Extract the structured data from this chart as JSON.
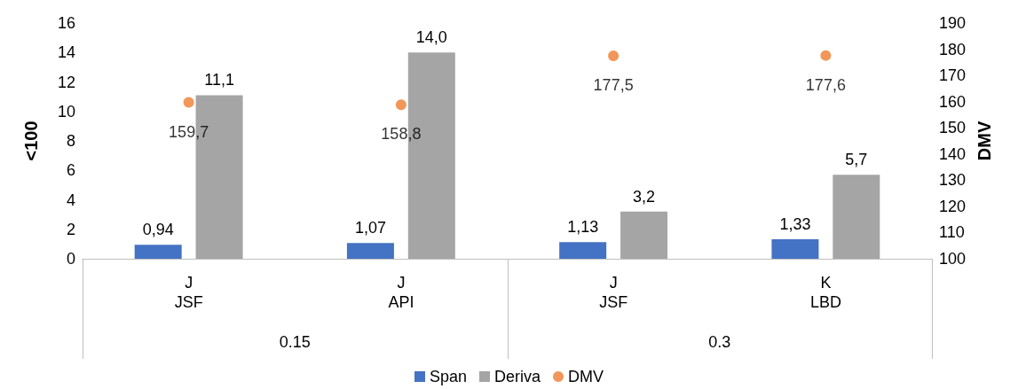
{
  "chart_data": {
    "type": "bar",
    "categories": [
      "J\nJSF",
      "J\nAPI",
      "J\nJSF",
      "K\nLBD"
    ],
    "series": [
      {
        "name": "Span",
        "color": "#4472c4",
        "values": [
          0.94,
          1.07,
          1.13,
          1.33
        ],
        "value_labels": [
          "0,94",
          "1,07",
          "1,13",
          "1,33"
        ]
      },
      {
        "name": "Deriva",
        "color": "#a5a5a5",
        "values": [
          11.1,
          14.0,
          3.2,
          5.7
        ],
        "value_labels": [
          "11,1",
          "14,0",
          "3,2",
          "5,7"
        ]
      },
      {
        "name": "DMV",
        "type": "scatter",
        "axis": "y2",
        "marker": "circle",
        "color": "#ed7d31",
        "values": [
          159.7,
          158.8,
          177.5,
          177.6
        ],
        "value_labels": [
          "159,7",
          "158,8",
          "177,5",
          "177,6"
        ]
      }
    ],
    "annotations": [
      "0.15",
      "0.3"
    ],
    "ylabel": "<100",
    "y2label": "DMV",
    "ylim": [
      0,
      16
    ],
    "yticks": [
      0,
      2,
      4,
      6,
      8,
      10,
      12,
      14,
      16
    ],
    "y2lim": [
      100,
      190
    ],
    "y2ticks": [
      100,
      110,
      120,
      130,
      140,
      150,
      160,
      170,
      180,
      190
    ],
    "grid": false,
    "legend": "bottom"
  }
}
